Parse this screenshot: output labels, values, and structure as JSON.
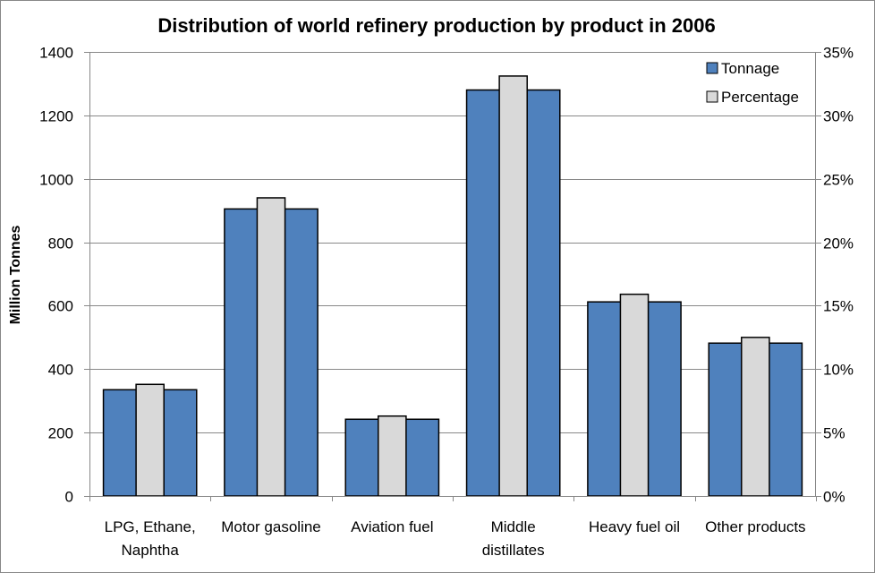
{
  "chart_data": {
    "type": "bar",
    "title": "Distribution of world refinery production by product in 2006",
    "categories": [
      [
        "LPG, Ethane,",
        "Naphtha"
      ],
      [
        "Motor gasoline"
      ],
      [
        "Aviation fuel"
      ],
      [
        "Middle",
        "distillates"
      ],
      [
        "Heavy fuel oil"
      ],
      [
        "Other products"
      ]
    ],
    "series": [
      {
        "name": "Tonnage",
        "axis": "left",
        "color": "#4F81BD",
        "values": [
          335,
          905,
          242,
          1280,
          612,
          482
        ]
      },
      {
        "name": "Percentage",
        "axis": "right",
        "color": "#D9D9D9",
        "values": [
          8.8,
          23.5,
          6.3,
          33.1,
          15.9,
          12.5
        ]
      }
    ],
    "ylabel": "Million Tonnes",
    "ylim": [
      0,
      1400
    ],
    "yticks": [
      0,
      200,
      400,
      600,
      800,
      1000,
      1200,
      1400
    ],
    "y2lim": [
      0,
      35
    ],
    "y2ticks": [
      "0%",
      "5%",
      "10%",
      "15%",
      "20%",
      "25%",
      "30%",
      "35%"
    ],
    "legend_position": "top-right",
    "grid": true
  }
}
